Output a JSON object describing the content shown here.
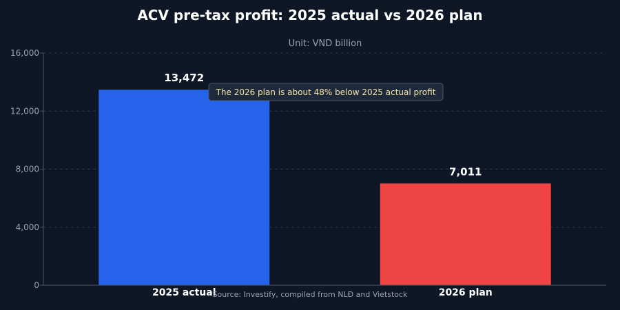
{
  "chart_data": {
    "type": "bar",
    "title": "ACV pre-tax profit: 2025 actual vs 2026 plan",
    "subtitle": "Unit: VND billion",
    "categories": [
      "2025 actual",
      "2026 plan"
    ],
    "values": [
      13472,
      7011
    ],
    "value_labels": [
      "13,472",
      "7,011"
    ],
    "colors": [
      "#2563eb",
      "#ef4444"
    ],
    "ylim": [
      0,
      16000
    ],
    "yticks": [
      0,
      4000,
      8000,
      12000,
      16000
    ],
    "ytick_labels": [
      "0",
      "4,000",
      "8,000",
      "12,000",
      "16,000"
    ],
    "grid": true,
    "xlabel": "",
    "ylabel": "",
    "annotation": "The 2026 plan is about 48% below 2025 actual profit",
    "source": "Source: Investify, compiled from NLĐ and Vietstock"
  },
  "theme": {
    "background": "#0f1726",
    "axis_color": "#4a5568",
    "grid_color": "#2c3647",
    "text_color": "#ffffff",
    "muted_text_color": "#9aa3b2",
    "annotation_text_color": "#f5e6a8",
    "annotation_box_fill": "#1e293b",
    "annotation_box_stroke": "#4b5563"
  }
}
